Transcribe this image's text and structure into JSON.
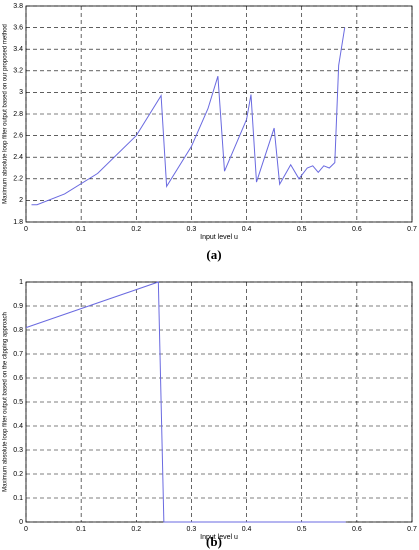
{
  "chart_data": [
    {
      "type": "line",
      "caption": "(a)",
      "xlabel": "Input level u",
      "ylabel": "Maximum absolute loop filter output based on our proposed method",
      "x": [
        0.01,
        0.02,
        0.07,
        0.13,
        0.2,
        0.245,
        0.255,
        0.3,
        0.33,
        0.348,
        0.36,
        0.4,
        0.408,
        0.418,
        0.45,
        0.46,
        0.48,
        0.495,
        0.51,
        0.52,
        0.53,
        0.54,
        0.55,
        0.56,
        0.567,
        0.578
      ],
      "series": [
        {
          "color": "#6a6ae0",
          "values": [
            1.96,
            1.96,
            2.06,
            2.25,
            2.6,
            2.97,
            2.13,
            2.5,
            2.85,
            3.15,
            2.27,
            2.75,
            2.98,
            2.17,
            2.67,
            2.15,
            2.33,
            2.2,
            2.3,
            2.32,
            2.26,
            2.32,
            2.3,
            2.35,
            3.25,
            3.6
          ]
        }
      ],
      "xlim": [
        0,
        0.7
      ],
      "xticks": [
        0,
        0.1,
        0.2,
        0.3,
        0.4,
        0.5,
        0.6,
        0.7
      ],
      "ylim": [
        1.8,
        3.8
      ],
      "yticks": [
        1.8,
        2,
        2.2,
        2.4,
        2.6,
        2.8,
        3,
        3.2,
        3.4,
        3.6,
        3.8
      ],
      "grid": true
    },
    {
      "type": "line",
      "caption": "(b)",
      "xlabel": "Input level u",
      "ylabel": "Maximum absolute loop filter output based on the clipping approach",
      "x": [
        0,
        0.24,
        0.25,
        0.58
      ],
      "series": [
        {
          "color": "#6a6ae0",
          "values": [
            0.81,
            1.0,
            0,
            0
          ]
        }
      ],
      "xlim": [
        0,
        0.7
      ],
      "xticks": [
        0,
        0.1,
        0.2,
        0.3,
        0.4,
        0.5,
        0.6,
        0.7
      ],
      "ylim": [
        0,
        1
      ],
      "yticks": [
        0,
        0.1,
        0.2,
        0.3,
        0.4,
        0.5,
        0.6,
        0.7,
        0.8,
        0.9,
        1
      ],
      "grid": true
    }
  ]
}
